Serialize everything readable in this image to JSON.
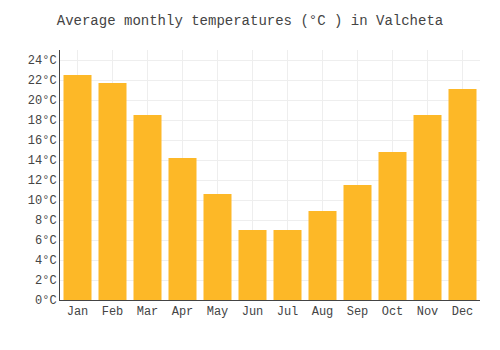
{
  "chart_data": {
    "type": "bar",
    "title": "Average monthly temperatures (°C ) in Valcheta",
    "categories": [
      "Jan",
      "Feb",
      "Mar",
      "Apr",
      "May",
      "Jun",
      "Jul",
      "Aug",
      "Sep",
      "Oct",
      "Nov",
      "Dec"
    ],
    "values": [
      22.5,
      21.7,
      18.5,
      14.2,
      10.6,
      7.0,
      7.0,
      8.9,
      11.5,
      14.8,
      18.5,
      21.1
    ],
    "color": "#FDB827",
    "ylim": [
      0,
      25
    ],
    "yticks": [
      {
        "value": 0,
        "label": "0°C"
      },
      {
        "value": 2,
        "label": "2°C"
      },
      {
        "value": 4,
        "label": "4°C"
      },
      {
        "value": 6,
        "label": "6°C"
      },
      {
        "value": 8,
        "label": "8°C"
      },
      {
        "value": 10,
        "label": "10°C"
      },
      {
        "value": 12,
        "label": "12°C"
      },
      {
        "value": 14,
        "label": "14°C"
      },
      {
        "value": 16,
        "label": "16°C"
      },
      {
        "value": 18,
        "label": "18°C"
      },
      {
        "value": 20,
        "label": "20°C"
      },
      {
        "value": 22,
        "label": "22°C"
      },
      {
        "value": 24,
        "label": "24°C"
      }
    ],
    "grid": true
  }
}
